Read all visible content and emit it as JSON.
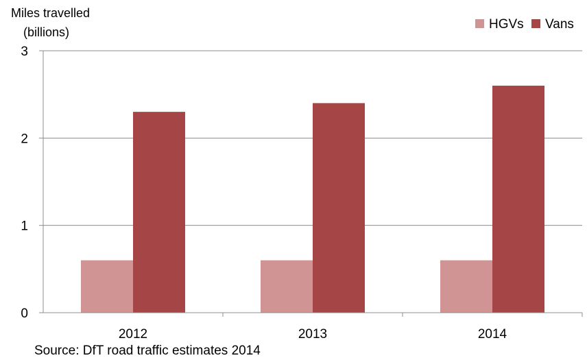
{
  "chart_data": {
    "type": "bar",
    "ylabel_lines": [
      "Miles travelled",
      "(billions)"
    ],
    "categories": [
      "2012",
      "2013",
      "2014"
    ],
    "series": [
      {
        "name": "HGVs",
        "values": [
          0.6,
          0.6,
          0.6
        ],
        "color": "#d09494"
      },
      {
        "name": "Vans",
        "values": [
          2.3,
          2.4,
          2.6
        ],
        "color": "#a54545"
      }
    ],
    "ylim": [
      0,
      3
    ],
    "yticks": [
      "0",
      "1",
      "2",
      "3"
    ],
    "grid": true,
    "legend": "top-right",
    "source": "Source:  DfT road traffic estimates  2014"
  }
}
